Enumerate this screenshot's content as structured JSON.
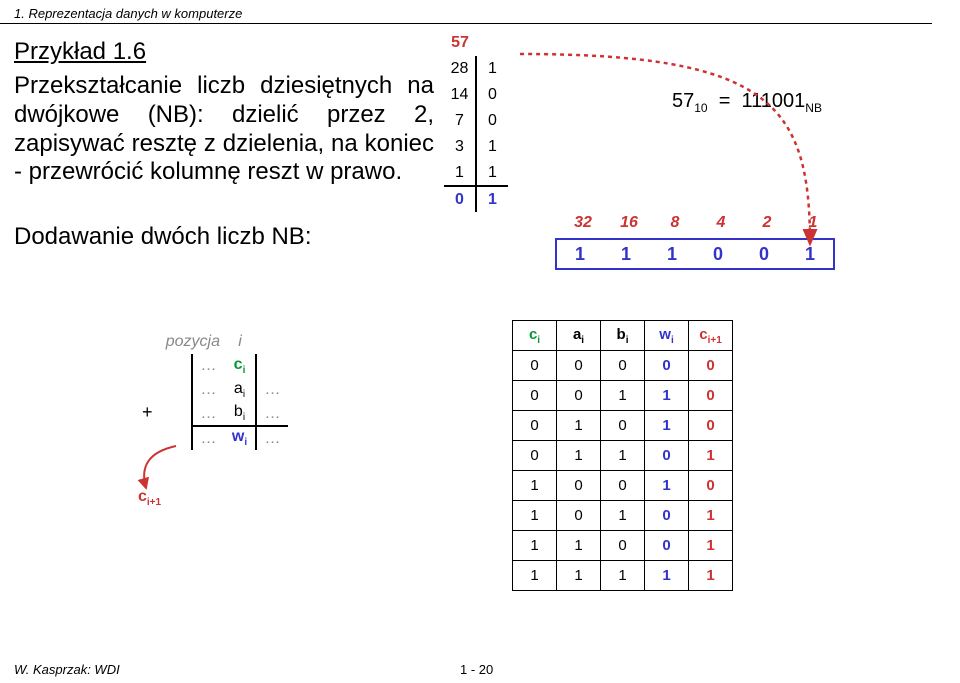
{
  "header": {
    "chapter": "1. Reprezentacja danych w komputerze"
  },
  "title": "Przykład 1.6",
  "paragraph1": "Przekształcanie liczb dziesiętnych na dwójkowe (NB): dzielić przez 2, zapisywać resztę z dzielenia, na koniec - przewrócić kolumnę reszt w prawo.",
  "paragraph2": "Dodawanie dwóch liczb NB:",
  "division": {
    "head": "57",
    "rows": [
      {
        "q": "28",
        "r": "1"
      },
      {
        "q": "14",
        "r": "0"
      },
      {
        "q": "7",
        "r": "0"
      },
      {
        "q": "3",
        "r": "1"
      },
      {
        "q": "1",
        "r": "1"
      },
      {
        "q": "0",
        "r": "1"
      }
    ],
    "colors": {
      "head": "#cc3333",
      "normal": "#000000",
      "result": "#3333cc"
    }
  },
  "equation": {
    "lhs_val": "57",
    "lhs_sub": "10",
    "rhs_val": "111001",
    "rhs_sub": "NB"
  },
  "weights": [
    "32",
    "16",
    "8",
    "4",
    "2",
    "1"
  ],
  "bits": [
    "1",
    "1",
    "1",
    "0",
    "0",
    "1"
  ],
  "add_diagram": {
    "pozycja": "pozycja",
    "i": "i",
    "rows": {
      "c": "c",
      "a": "a",
      "b": "b",
      "w": "w",
      "carry": "c",
      "i1": "i+1"
    },
    "dots": "…",
    "plus": "+"
  },
  "truth_table": {
    "headers": [
      {
        "t": "c",
        "sub": "i",
        "cls": "grn"
      },
      {
        "t": "a",
        "sub": "i",
        "cls": ""
      },
      {
        "t": "b",
        "sub": "i",
        "cls": ""
      },
      {
        "t": "w",
        "sub": "i",
        "cls": "blu"
      },
      {
        "t": "c",
        "sub": "i+1",
        "cls": "red"
      }
    ],
    "rows": [
      [
        "0",
        "0",
        "0",
        "0",
        "0"
      ],
      [
        "0",
        "0",
        "1",
        "1",
        "0"
      ],
      [
        "0",
        "1",
        "0",
        "1",
        "0"
      ],
      [
        "0",
        "1",
        "1",
        "0",
        "1"
      ],
      [
        "1",
        "0",
        "0",
        "1",
        "0"
      ],
      [
        "1",
        "0",
        "1",
        "0",
        "1"
      ],
      [
        "1",
        "1",
        "0",
        "0",
        "1"
      ],
      [
        "1",
        "1",
        "1",
        "1",
        "1"
      ]
    ],
    "col_classes": [
      "",
      "",
      "",
      "blu",
      "red"
    ]
  },
  "footer": {
    "author": "W. Kasprzak: WDI",
    "page": "1 - 20"
  },
  "colors": {
    "green": "#009933",
    "blue": "#3333cc",
    "red": "#cc3333",
    "grey": "#888888"
  }
}
